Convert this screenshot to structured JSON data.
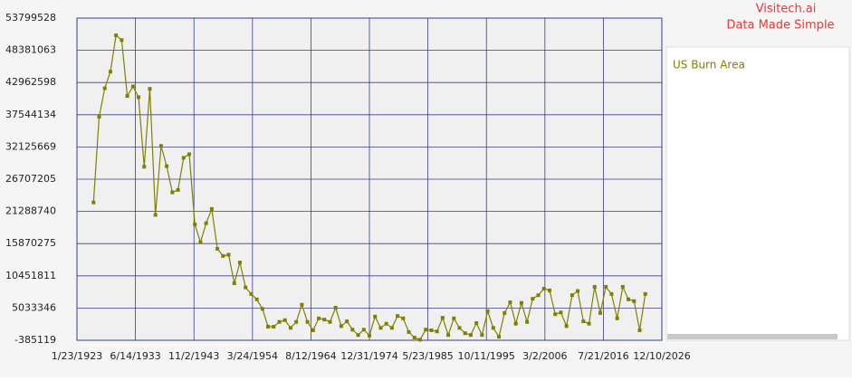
{
  "chart_data": {
    "type": "line",
    "watermark": [
      "Visitech.ai",
      "Data Made Simple"
    ],
    "x": [
      1926,
      1927,
      1928,
      1929,
      1930,
      1931,
      1932,
      1933,
      1934,
      1935,
      1936,
      1937,
      1938,
      1939,
      1940,
      1941,
      1942,
      1943,
      1944,
      1945,
      1946,
      1947,
      1948,
      1949,
      1950,
      1951,
      1952,
      1953,
      1954,
      1955,
      1956,
      1957,
      1958,
      1959,
      1960,
      1961,
      1962,
      1963,
      1964,
      1965,
      1966,
      1967,
      1968,
      1969,
      1970,
      1971,
      1972,
      1973,
      1974,
      1975,
      1976,
      1977,
      1978,
      1979,
      1980,
      1981,
      1982,
      1983,
      1984,
      1985,
      1986,
      1987,
      1988,
      1989,
      1990,
      1991,
      1992,
      1993,
      1994,
      1995,
      1996,
      1997,
      1998,
      1999,
      2000,
      2001,
      2002,
      2003,
      2004,
      2005,
      2006,
      2007,
      2008,
      2009,
      2010,
      2011,
      2012,
      2013,
      2014,
      2015,
      2016,
      2017,
      2018,
      2019,
      2020,
      2021,
      2022,
      2023,
      2024
    ],
    "series": [
      {
        "name": "US Burn Area",
        "color": "#808000",
        "values": [
          22800000,
          37200000,
          42000000,
          44800000,
          50900000,
          50100000,
          40700000,
          42300000,
          40500000,
          28800000,
          41900000,
          20700000,
          32300000,
          28900000,
          24500000,
          24900000,
          30300000,
          30900000,
          19100000,
          16100000,
          19300000,
          21700000,
          15000000,
          13800000,
          14000000,
          9200000,
          12700000,
          8500000,
          7400000,
          6500000,
          4900000,
          1900000,
          1900000,
          2700000,
          3000000,
          1700000,
          2700000,
          5600000,
          2700000,
          1300000,
          3300000,
          3100000,
          2700000,
          5100000,
          2000000,
          2800000,
          1400000,
          500000,
          1400000,
          400000,
          3600000,
          1700000,
          2400000,
          1700000,
          3700000,
          3300000,
          1000000,
          70000,
          -300000,
          1400000,
          1300000,
          1100000,
          3400000,
          500000,
          3300000,
          1700000,
          800000,
          500000,
          2500000,
          500000,
          4500000,
          1700000,
          200000,
          4200000,
          6000000,
          2400000,
          5900000,
          2700000,
          6600000,
          7200000,
          8300000,
          8000000,
          4000000,
          4300000,
          2000000,
          7200000,
          7900000,
          2800000,
          2400000,
          8600000,
          4200000,
          8600000,
          7400000,
          3300000,
          8600000,
          6500000,
          6200000,
          1300000,
          7400000
        ]
      }
    ],
    "xlim": [
      1923.06,
      2026.94
    ],
    "xticks": [
      {
        "value": 1923.06,
        "label": "1/23/1923"
      },
      {
        "value": 1933.45,
        "label": "6/14/1933"
      },
      {
        "value": 1943.84,
        "label": "11/2/1943"
      },
      {
        "value": 1954.23,
        "label": "3/24/1954"
      },
      {
        "value": 1964.61,
        "label": "8/12/1964"
      },
      {
        "value": 1975.0,
        "label": "12/31/1974"
      },
      {
        "value": 1985.39,
        "label": "5/23/1985"
      },
      {
        "value": 1995.78,
        "label": "10/11/1995"
      },
      {
        "value": 2006.17,
        "label": "3/2/2006"
      },
      {
        "value": 2016.55,
        "label": "7/21/2016"
      },
      {
        "value": 2026.94,
        "label": "12/10/2026"
      }
    ],
    "ylim": [
      -385119,
      53799528
    ],
    "yticks": [
      -385119,
      5033346,
      10451811,
      15870275,
      21288740,
      26707205,
      32125669,
      37544134,
      42962598,
      48381063,
      53799528
    ],
    "grid": true,
    "legend": "right"
  }
}
